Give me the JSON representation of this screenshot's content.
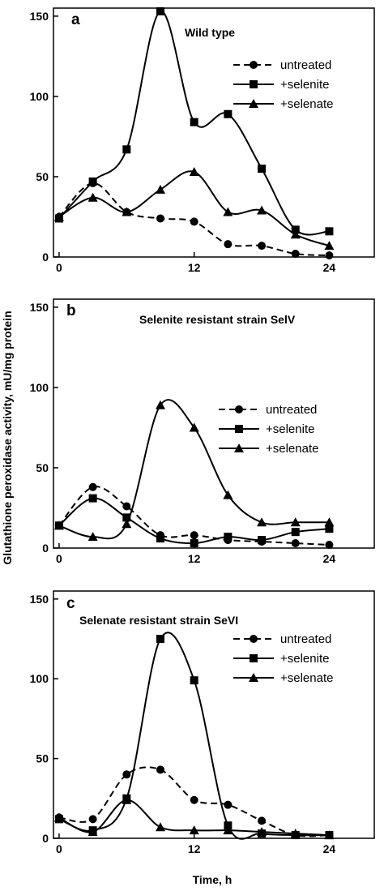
{
  "figure": {
    "ylabel": "Glutathione peroxidase activity, mU/mg protein",
    "xlabel": "Time, h"
  },
  "chart_data": [
    {
      "type": "line",
      "panel_label": "a",
      "title": "Wild type",
      "xlim": [
        -0.5,
        28
      ],
      "ylim": [
        0,
        155
      ],
      "xticks": [
        0,
        12,
        24
      ],
      "yticks": [
        0,
        50,
        100,
        150
      ],
      "legend_position": "top-right",
      "series": [
        {
          "name": "untreated",
          "marker": "circle",
          "dash": true,
          "x": [
            0,
            3,
            6,
            9,
            12,
            15,
            18,
            21,
            24
          ],
          "y": [
            25,
            46,
            28,
            24,
            22,
            8,
            7,
            2,
            1
          ]
        },
        {
          "name": "+selenite",
          "marker": "square",
          "dash": false,
          "x": [
            0,
            3,
            6,
            9,
            12,
            15,
            18,
            21,
            24
          ],
          "y": [
            24,
            47,
            67,
            153,
            84,
            89,
            55,
            17,
            16
          ]
        },
        {
          "name": "+selenate",
          "marker": "triangle",
          "dash": false,
          "x": [
            0,
            3,
            6,
            9,
            12,
            15,
            18,
            21,
            24
          ],
          "y": [
            25,
            37,
            28,
            42,
            53,
            28,
            29,
            14,
            7
          ]
        }
      ]
    },
    {
      "type": "line",
      "panel_label": "b",
      "title": "Selenite resistant strain SelV",
      "xlim": [
        -0.5,
        28
      ],
      "ylim": [
        0,
        155
      ],
      "xticks": [
        0,
        12,
        24
      ],
      "yticks": [
        0,
        50,
        100,
        150
      ],
      "legend_position": "right",
      "series": [
        {
          "name": "untreated",
          "marker": "circle",
          "dash": true,
          "x": [
            0,
            3,
            6,
            9,
            12,
            15,
            18,
            21,
            24
          ],
          "y": [
            14,
            38,
            26,
            8,
            8,
            5,
            4,
            3,
            2
          ]
        },
        {
          "name": "+selenite",
          "marker": "square",
          "dash": false,
          "x": [
            0,
            3,
            6,
            9,
            12,
            15,
            18,
            21,
            24
          ],
          "y": [
            14,
            31,
            19,
            6,
            3,
            7,
            5,
            10,
            12
          ]
        },
        {
          "name": "+selenate",
          "marker": "triangle",
          "dash": false,
          "x": [
            0,
            3,
            6,
            9,
            12,
            15,
            18,
            21,
            24
          ],
          "y": [
            14,
            7,
            15,
            89,
            75,
            33,
            16,
            16,
            16
          ]
        }
      ]
    },
    {
      "type": "line",
      "panel_label": "c",
      "title": "Selenate resistant strain SeVI",
      "xlim": [
        -0.5,
        28
      ],
      "ylim": [
        0,
        155
      ],
      "xticks": [
        0,
        12,
        24
      ],
      "yticks": [
        0,
        50,
        100,
        150
      ],
      "legend_position": "top-right",
      "series": [
        {
          "name": "untreated",
          "marker": "circle",
          "dash": true,
          "x": [
            0,
            3,
            6,
            9,
            12,
            15,
            18,
            21,
            24
          ],
          "y": [
            13,
            12,
            40,
            43,
            24,
            21,
            11,
            2,
            2
          ]
        },
        {
          "name": "+selenite",
          "marker": "square",
          "dash": false,
          "x": [
            0,
            3,
            6,
            9,
            12,
            15,
            18,
            21,
            24
          ],
          "y": [
            12,
            5,
            25,
            125,
            99,
            8,
            3,
            2,
            2
          ]
        },
        {
          "name": "+selenate",
          "marker": "triangle",
          "dash": false,
          "x": [
            0,
            3,
            6,
            9,
            12,
            15,
            18,
            21,
            24
          ],
          "y": [
            13,
            4,
            24,
            7,
            5,
            5,
            4,
            3,
            2
          ]
        }
      ]
    }
  ]
}
